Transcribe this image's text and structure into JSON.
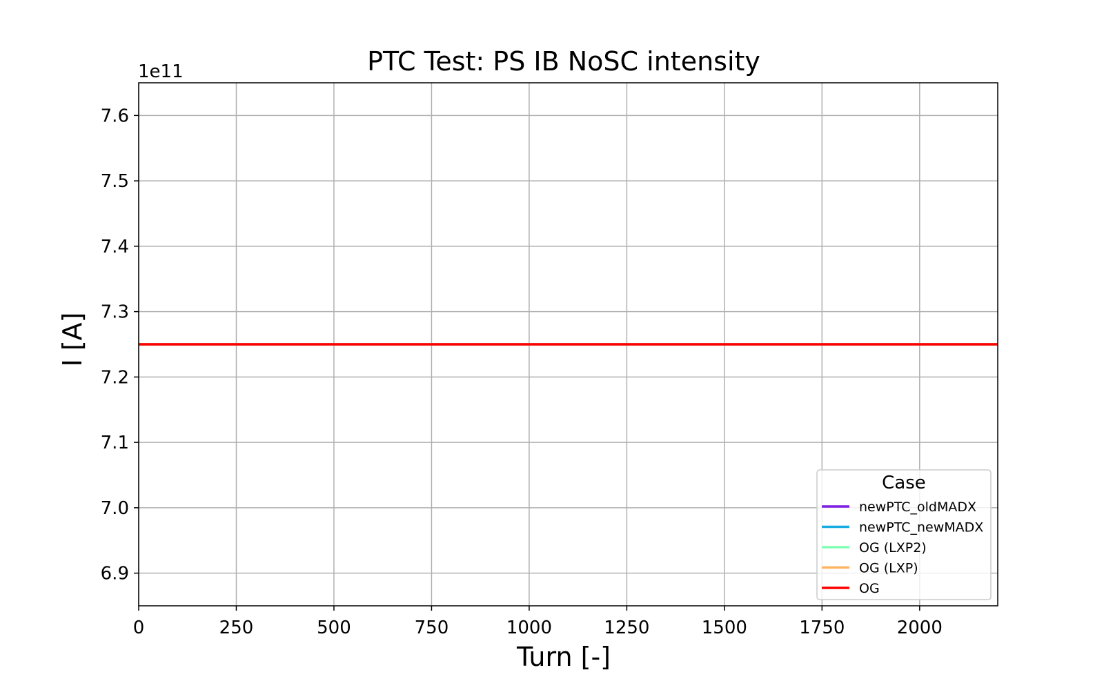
{
  "chart_data": {
    "type": "line",
    "title": "PTC Test: PS IB NoSC intensity",
    "xlabel": "Turn [-]",
    "ylabel": "I [A]",
    "y_offset_label": "1e11",
    "xlim": [
      0,
      2200
    ],
    "ylim": [
      6.85,
      7.65
    ],
    "x_ticks": [
      0,
      250,
      500,
      750,
      1000,
      1250,
      1500,
      1750,
      2000
    ],
    "y_ticks": [
      6.9,
      7.0,
      7.1,
      7.2,
      7.3,
      7.4,
      7.5,
      7.6
    ],
    "grid": true,
    "legend": {
      "title": "Case",
      "placement": "lower-right"
    },
    "series": [
      {
        "name": "newPTC_oldMADX",
        "color": "#7f1fe0",
        "x": [
          0,
          2200
        ],
        "y": [
          7.25,
          7.25
        ]
      },
      {
        "name": "newPTC_newMADX",
        "color": "#18ace0",
        "x": [
          0,
          2200
        ],
        "y": [
          7.25,
          7.25
        ]
      },
      {
        "name": "OG (LXP2)",
        "color": "#80ffb4",
        "x": [
          0,
          2200
        ],
        "y": [
          7.25,
          7.25
        ]
      },
      {
        "name": "OG (LXP)",
        "color": "#ffb360",
        "x": [
          0,
          2200
        ],
        "y": [
          7.25,
          7.25
        ]
      },
      {
        "name": "OG",
        "color": "#ff0000",
        "x": [
          0,
          2200
        ],
        "y": [
          7.25,
          7.25
        ]
      }
    ]
  }
}
